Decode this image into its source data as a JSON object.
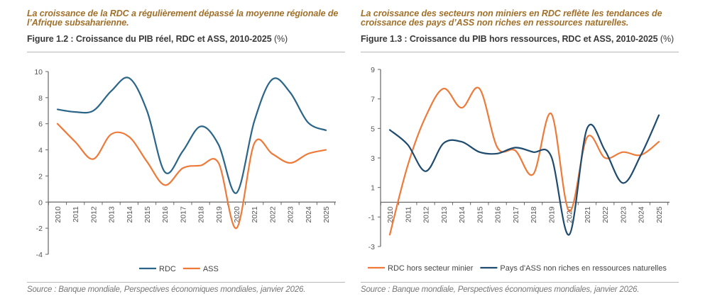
{
  "panels": [
    {
      "headline": "La croissance de la RDC a régulièrement dépassé la moyenne régionale de l’Afrique subsaharienne.",
      "figure_title": "Figure 1.2 : Croissance du PIB réel, RDC et ASS, 2010-2025",
      "figure_unit": "(%)",
      "source": "Source : Banque mondiale, Perspectives économiques mondiales, janvier 2026."
    },
    {
      "headline": "La croissance des secteurs non miniers en RDC reflète les tendances de croissance des pays d’ASS non riches en ressources naturelles.",
      "figure_title": "Figure 1.3 : Croissance du PIB hors ressources, RDC et ASS, 2010-2025",
      "figure_unit": "(%)",
      "source": "Source : Banque mondiale, Perspectives économiques mondiales, janvier 2026."
    }
  ],
  "chart_data": [
    {
      "type": "line",
      "title": "Figure 1.2 : Croissance du PIB réel, RDC et ASS, 2010-2025 (%)",
      "xlabel": "",
      "ylabel": "",
      "x": [
        "2010",
        "2011",
        "2012",
        "2013",
        "2014",
        "2015",
        "2016",
        "2017",
        "2018",
        "2019",
        "2020",
        "2021",
        "2022",
        "2023",
        "2024",
        "2025"
      ],
      "ylim": [
        -4,
        10
      ],
      "yticks": [
        -4,
        -2,
        0,
        2,
        4,
        6,
        8,
        10
      ],
      "ytick_labels": [
        "-4",
        "-2",
        "0",
        "2",
        "4",
        "6",
        "8",
        "10"
      ],
      "grid": false,
      "smooth": true,
      "legend_position": "bottom-center",
      "series": [
        {
          "name": "RDC",
          "color": "#2b6688",
          "values": [
            7.1,
            6.9,
            7.0,
            8.5,
            9.5,
            7.0,
            2.3,
            3.9,
            5.8,
            4.4,
            0.7,
            6.2,
            9.4,
            8.4,
            6.1,
            5.5
          ]
        },
        {
          "name": "ASS",
          "color": "#ee7a3a",
          "values": [
            6.0,
            4.6,
            3.3,
            5.2,
            5.0,
            3.1,
            1.3,
            2.6,
            2.8,
            3.0,
            -2.0,
            4.5,
            3.7,
            3.0,
            3.7,
            4.0
          ]
        }
      ]
    },
    {
      "type": "line",
      "title": "Figure 1.3 : Croissance du PIB hors ressources, RDC et ASS, 2010-2025 (%)",
      "xlabel": "",
      "ylabel": "",
      "x": [
        "2010",
        "2011",
        "2012",
        "2013",
        "2014",
        "2015",
        "2016",
        "2017",
        "2018",
        "2019",
        "2020",
        "2021",
        "2022",
        "2023",
        "2024",
        "2025"
      ],
      "ylim": [
        -3,
        9
      ],
      "yticks": [
        -3,
        -1,
        1,
        3,
        5,
        7,
        9
      ],
      "ytick_labels": [
        "-3",
        "-1",
        "1",
        "3",
        "5",
        "7",
        "9"
      ],
      "grid": false,
      "smooth": true,
      "legend_position": "bottom-center",
      "series": [
        {
          "name": "RDC hors secteur minier",
          "color": "#ee7a3a",
          "values": [
            -2.2,
            2.5,
            5.8,
            7.7,
            6.4,
            7.7,
            3.7,
            3.5,
            1.9,
            6.0,
            -0.6,
            4.4,
            3.0,
            3.4,
            3.2,
            4.1
          ]
        },
        {
          "name": "Pays d'ASS non riches en ressources naturelles",
          "color": "#1f4b6e",
          "values": [
            4.9,
            3.9,
            2.1,
            4.0,
            4.1,
            3.4,
            3.3,
            3.7,
            3.4,
            3.1,
            -2.2,
            5.0,
            3.5,
            1.3,
            3.2,
            5.9
          ]
        }
      ]
    }
  ]
}
